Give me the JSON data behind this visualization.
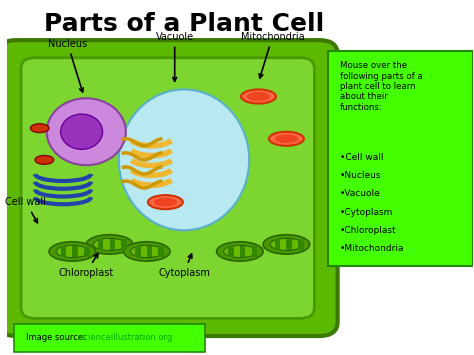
{
  "title": "Parts of a Plant Cell",
  "title_fontsize": 18,
  "title_fontweight": "bold",
  "bg_color": "#ffffff",
  "cell_outer_color": "#5cb800",
  "cell_outer_edge": "#3a7a00",
  "cell_inner_color": "#7dd630",
  "cell_inner_edge": "#4a9900",
  "vacuole_color": "#b8e8f0",
  "vacuole_edge": "#5aafcc",
  "nucleus_outer_color": "#cc88dd",
  "nucleus_inner_color": "#9933bb",
  "golgi_color": "#f0b830",
  "chloroplast_color": "#4a9900",
  "chloroplast_inner": "#6bbf00",
  "mito_color": "#cc3300",
  "mito_inner": "#ff6644",
  "cytoplasm_color": "#88cc44",
  "info_box_color": "#44ff00",
  "info_box_edge": "#228800",
  "source_box_color": "#44ff00",
  "source_box_edge": "#228800",
  "info_title": "Mouse over the\nfollowing parts of a\nplant cell to learn\nabout their\nfunctions:",
  "info_items": [
    "Cell wall",
    "Nucleus",
    "Vacuole",
    "Cytoplasm",
    "Chloroplast",
    "Mitochondria"
  ],
  "source_text": "Image source: ",
  "source_link": "scienceillustration.org",
  "source_link_color": "#00aa00"
}
